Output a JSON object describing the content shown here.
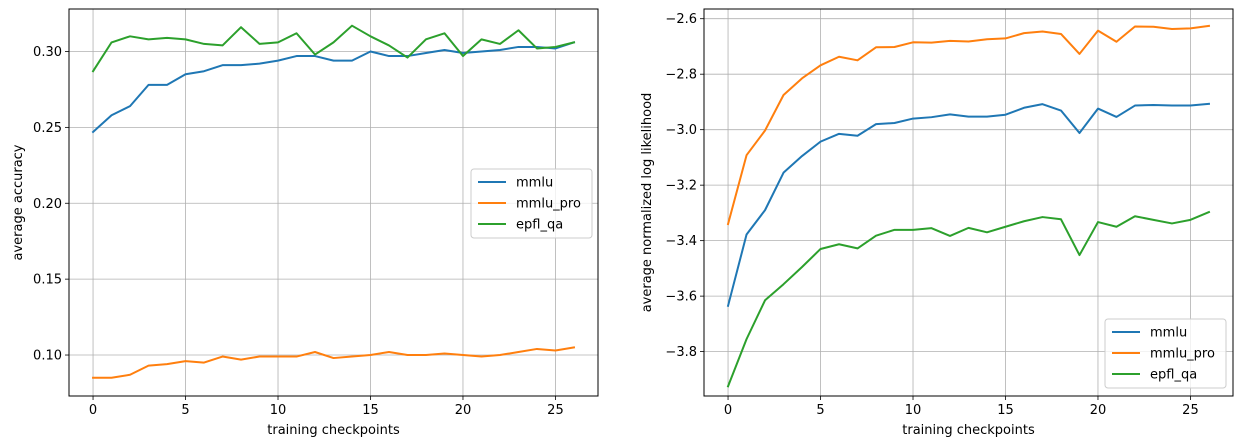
{
  "chart_data": [
    {
      "type": "line",
      "xlabel": "training checkpoints",
      "ylabel": "average accuracy",
      "xlim": [
        -1.3,
        27.3
      ],
      "ylim": [
        0.073,
        0.328
      ],
      "xticks": [
        0,
        5,
        10,
        15,
        20,
        25
      ],
      "yticks": [
        0.1,
        0.15,
        0.2,
        0.25,
        0.3
      ],
      "ytick_format": "fixed2",
      "grid": true,
      "legend_position": "center-right",
      "x": [
        0,
        1,
        2,
        3,
        4,
        5,
        6,
        7,
        8,
        9,
        10,
        11,
        12,
        13,
        14,
        15,
        16,
        17,
        18,
        19,
        20,
        21,
        22,
        23,
        24,
        25,
        26
      ],
      "series": [
        {
          "name": "mmlu",
          "color": "#1f77b4",
          "values": [
            0.247,
            0.258,
            0.264,
            0.278,
            0.278,
            0.285,
            0.287,
            0.291,
            0.291,
            0.292,
            0.294,
            0.297,
            0.297,
            0.294,
            0.294,
            0.3,
            0.297,
            0.297,
            0.299,
            0.301,
            0.299,
            0.3,
            0.301,
            0.303,
            0.303,
            0.302,
            0.306
          ]
        },
        {
          "name": "mmlu_pro",
          "color": "#ff7f0e",
          "values": [
            0.085,
            0.085,
            0.087,
            0.093,
            0.094,
            0.096,
            0.095,
            0.099,
            0.097,
            0.099,
            0.099,
            0.099,
            0.102,
            0.098,
            0.099,
            0.1,
            0.102,
            0.1,
            0.1,
            0.101,
            0.1,
            0.099,
            0.1,
            0.102,
            0.104,
            0.103,
            0.105
          ]
        },
        {
          "name": "epfl_qa",
          "color": "#2ca02c",
          "values": [
            0.287,
            0.306,
            0.31,
            0.308,
            0.309,
            0.308,
            0.305,
            0.304,
            0.316,
            0.305,
            0.306,
            0.312,
            0.298,
            0.306,
            0.317,
            0.31,
            0.304,
            0.296,
            0.308,
            0.312,
            0.297,
            0.308,
            0.305,
            0.314,
            0.302,
            0.303,
            0.306
          ]
        }
      ]
    },
    {
      "type": "line",
      "xlabel": "training checkpoints",
      "ylabel": "average normalized log likelihood",
      "xlim": [
        -1.3,
        27.3
      ],
      "ylim": [
        -3.96,
        -2.565
      ],
      "xticks": [
        0,
        5,
        10,
        15,
        20,
        25
      ],
      "yticks": [
        -3.8,
        -3.6,
        -3.4,
        -3.2,
        -3.0,
        -2.8,
        -2.6
      ],
      "ytick_format": "fixed1minus",
      "grid": true,
      "legend_position": "lower-right",
      "x": [
        0,
        1,
        2,
        3,
        4,
        5,
        6,
        7,
        8,
        9,
        10,
        11,
        12,
        13,
        14,
        15,
        16,
        17,
        18,
        19,
        20,
        21,
        22,
        23,
        24,
        25,
        26
      ],
      "series": [
        {
          "name": "mmlu",
          "color": "#1f77b4",
          "values": [
            -3.635,
            -3.378,
            -3.29,
            -3.155,
            -3.095,
            -3.043,
            -3.015,
            -3.022,
            -2.98,
            -2.976,
            -2.96,
            -2.955,
            -2.945,
            -2.953,
            -2.953,
            -2.946,
            -2.921,
            -2.908,
            -2.931,
            -3.012,
            -2.924,
            -2.954,
            -2.913,
            -2.911,
            -2.913,
            -2.913,
            -2.907
          ]
        },
        {
          "name": "mmlu_pro",
          "color": "#ff7f0e",
          "values": [
            -3.34,
            -3.092,
            -3.003,
            -2.875,
            -2.815,
            -2.768,
            -2.737,
            -2.75,
            -2.703,
            -2.702,
            -2.685,
            -2.686,
            -2.68,
            -2.682,
            -2.674,
            -2.671,
            -2.652,
            -2.646,
            -2.655,
            -2.727,
            -2.643,
            -2.683,
            -2.628,
            -2.629,
            -2.637,
            -2.635,
            -2.626
          ]
        },
        {
          "name": "epfl_qa",
          "color": "#2ca02c",
          "values": [
            -3.925,
            -3.755,
            -3.615,
            -3.557,
            -3.495,
            -3.43,
            -3.413,
            -3.428,
            -3.382,
            -3.361,
            -3.361,
            -3.355,
            -3.383,
            -3.354,
            -3.37,
            -3.35,
            -3.33,
            -3.315,
            -3.323,
            -3.452,
            -3.333,
            -3.35,
            -3.312,
            -3.325,
            -3.338,
            -3.325,
            -3.297
          ]
        }
      ]
    }
  ]
}
